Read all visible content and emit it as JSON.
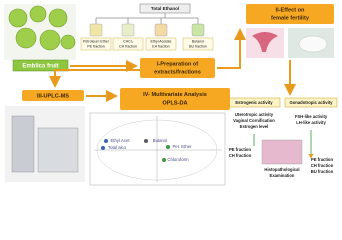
{
  "source": {
    "label": "Emblica fruit"
  },
  "extraction": {
    "total": "Total Ethanol",
    "fractions": [
      {
        "lines": [
          "Petroleum Ether",
          "PE fraction"
        ]
      },
      {
        "lines": [
          "CHCl₃",
          "CH fraction"
        ]
      },
      {
        "lines": [
          "Ethyl Acetate",
          "EA fraction"
        ]
      },
      {
        "lines": [
          "Butanol",
          "BU fraction"
        ]
      }
    ],
    "step": [
      "I-Preparation of",
      "extracts/fractions"
    ]
  },
  "fertility": {
    "step": [
      "II-Effect on",
      "female fertility"
    ],
    "estrogenic": {
      "title": "Estrogenic activity",
      "findings": [
        "Uterotropic activity",
        "Vaginal Cornification",
        "Estrogen level"
      ],
      "active": [
        "PE fraction",
        "CH fraction"
      ]
    },
    "gonadotropic": {
      "title": "Gonadotropic activity",
      "findings": [
        "FSH-like activity",
        "LH-like activity"
      ],
      "active": [
        "PE fraction",
        "CH fraction",
        "BU fraction"
      ]
    },
    "histology": [
      "Histopathological",
      "Examination"
    ]
  },
  "uplc": {
    "step": "III-UPLC-MS"
  },
  "multivariate": {
    "step": [
      "IV- Multivariate Analysis",
      "OPLS-DA"
    ],
    "groups": [
      "Ethyl Acet",
      "Butanol",
      "Total alco",
      "Pet. Ether",
      "Chloroform"
    ]
  }
}
